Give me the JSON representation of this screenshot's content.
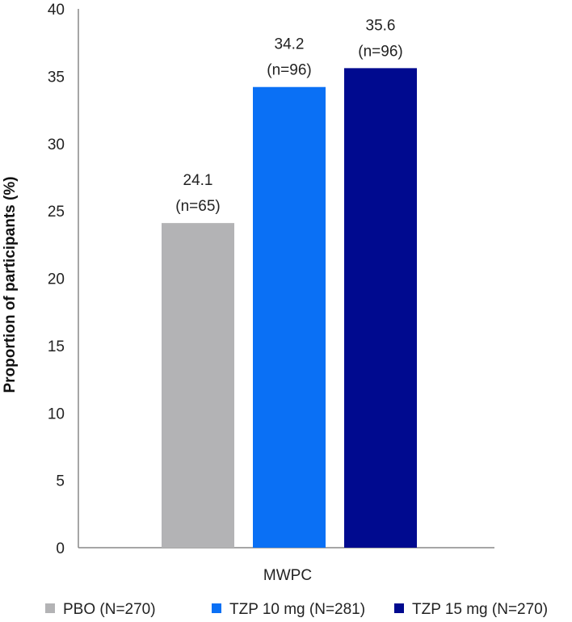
{
  "chart_data": {
    "type": "bar",
    "categories": [
      "MWPC"
    ],
    "series": [
      {
        "name": "PBO (N=270)",
        "values": [
          24.1
        ],
        "label": "24.1",
        "n_label": "(n=65)",
        "color": "#b3b3b5"
      },
      {
        "name": "TZP 10 mg (N=281)",
        "values": [
          34.2
        ],
        "label": "34.2",
        "n_label": "(n=96)",
        "color": "#0a70f5"
      },
      {
        "name": "TZP 15 mg (N=270)",
        "values": [
          35.6
        ],
        "label": "35.6",
        "n_label": "(n=96)",
        "color": "#000a8f"
      }
    ],
    "ylabel": "Proportion of participants (%)",
    "xlabel": "",
    "ylim": [
      0,
      40
    ],
    "yticks": [
      "0",
      "5",
      "10",
      "15",
      "20",
      "25",
      "30",
      "35",
      "40"
    ],
    "grid": false,
    "legend": "bottom"
  }
}
